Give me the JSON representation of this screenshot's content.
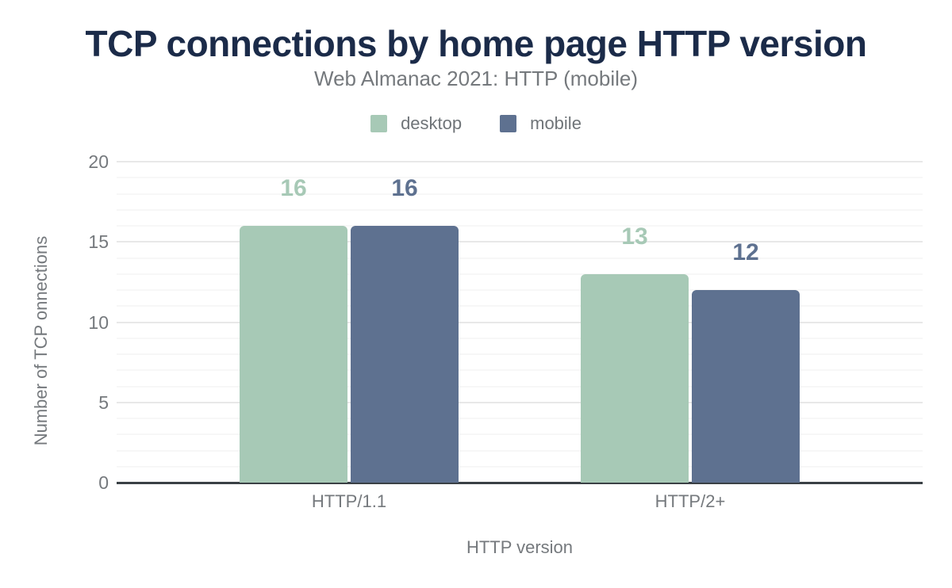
{
  "chart_data": {
    "type": "bar",
    "title": "TCP connections by home page HTTP version",
    "subtitle": "Web Almanac 2021: HTTP (mobile)",
    "categories": [
      "HTTP/1.1",
      "HTTP/2+"
    ],
    "series": [
      {
        "name": "desktop",
        "color": "#a7c9b6",
        "values": [
          16,
          13
        ]
      },
      {
        "name": "mobile",
        "color": "#5e7190",
        "values": [
          16,
          12
        ]
      }
    ],
    "value_labels": {
      "desktop": [
        "16",
        "13"
      ],
      "mobile": [
        "16",
        "12"
      ]
    },
    "xlabel": "HTTP version",
    "ylabel": "Number of TCP onnections",
    "ylim": [
      0,
      20
    ],
    "yticks": [
      "0",
      "5",
      "10",
      "15",
      "20"
    ],
    "minor_grid_unit": 1,
    "major_grid_unit": 5,
    "grid": "horizontal",
    "legend_position": "top"
  },
  "colors": {
    "title_text": "#1b2b49",
    "muted_text": "#75797d",
    "axis_line": "#3a4045",
    "grid_major": "#e8e8e8",
    "grid_minor": "#f7f7f7",
    "background": "#ffffff"
  }
}
